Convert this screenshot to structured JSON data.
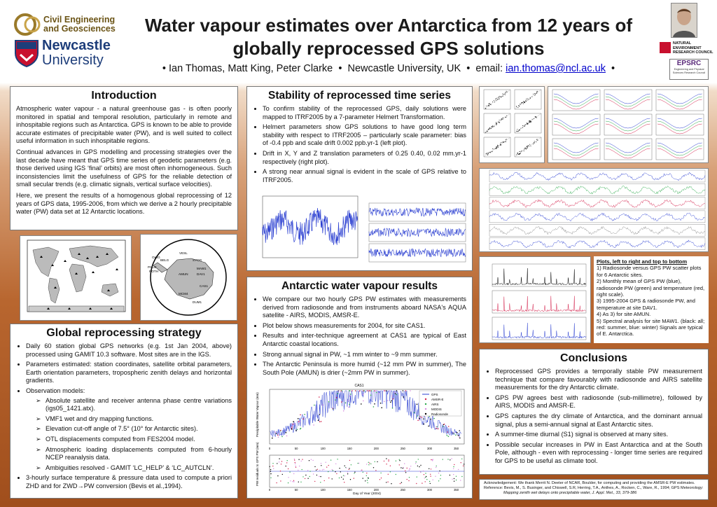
{
  "header": {
    "title_line1": "Water vapour estimates over Antarctica from 12 years of",
    "title_line2": "globally reprocessed GPS solutions",
    "authors": "Ian Thomas, Matt King, Peter Clarke",
    "affiliation": "Newcastle University, UK",
    "email_label": "email:",
    "email": "ian.thomas@ncl.ac.uk",
    "logo_ceg_line1": "Civil Engineering",
    "logo_ceg_line2": "and Geosciences",
    "logo_uni_line1": "Newcastle",
    "logo_uni_line2": "University",
    "logo_nerc_1": "NATURAL",
    "logo_nerc_2": "ENVIRONMENT",
    "logo_nerc_3": "RESEARCH COUNCIL",
    "logo_epsrc": "EPSRC",
    "logo_epsrc_sub": "Engineering and Physical Sciences Research Council"
  },
  "introduction": {
    "title": "Introduction",
    "p1": "Atmospheric water vapour - a natural greenhouse gas - is often poorly monitored in spatial and temporal resolution, particularly in remote and inhospitable regions such as Antarctica. GPS is known to be able to provide accurate estimates of precipitable water (PW), and is well suited to collect useful information in such inhospitable regions.",
    "p2": "Continual advances in GPS modelling and processing strategies over the last decade have meant that GPS time series of geodetic parameters (e.g. those derived using IGS ‘final’ orbits) are most often inhomogeneous. Such inconsistencies limit the usefulness of GPS for the reliable detection of small secular trends (e.g. climatic signals, vertical surface velocities).",
    "p3": "Here, we present the results of a homogenous global reprocessing of 12 years of GPS data, 1995-2006, from which we derive a 2 hourly precipitable water (PW) data set at 12 Antarctic locations."
  },
  "global_strategy": {
    "title": "Global reprocessing strategy",
    "b1": "Daily 60 station global GPS networks (e.g. 1st Jan 2004, above) processed using GAMIT 10.3 software. Most sites are in the IGS.",
    "b2": "Parameters estimated: station coordinates, satellite orbital parameters, Earth orientation parameters, tropospheric zenith delays and horizontal gradients.",
    "b3": "Observation models:",
    "s1": "Absolute satellite and receiver antenna phase centre variations (igs05_1421.atx).",
    "s2": "VMF1 wet and dry mapping functions.",
    "s3": "Elevation cut-off angle of 7.5° (10° for Antarctic sites).",
    "s4": "OTL displacements computed from FES2004 model.",
    "s5": "Atmospheric loading displacements computed from 6-hourly NCEP reanalysis data.",
    "s6": "Ambiguities resolved - GAMIT ‘LC_HELP’ & ‘LC_AUTCLN’.",
    "b4": "3-hourly surface temperature & pressure data used to compute a priori ZHD and for ZWD→PW conversion (Bevis et al.,1994)."
  },
  "stability": {
    "title": "Stability of reprocessed time series",
    "b1": "To confirm stability of the reprocessed GPS, daily solutions were mapped to ITRF2005 by a 7-parameter Helmert Transformation.",
    "b2": "Helmert parameters show GPS solutions to have good long term stability with respect to ITRF2005 – particularly scale parameter: bias of -0.4 ppb and scale drift 0.002 ppb.yr-1 (left plot).",
    "b3": "Drift in X, Y and Z translation parameters of 0.25 0.40, 0.02 mm.yr-1 respectively (right plot).",
    "b4": "A strong near annual signal is evident in the scale of GPS relative to ITRF2005."
  },
  "antarctic": {
    "title": "Antarctic water vapour results",
    "b1": "We compare our two hourly GPS PW estimates with measurements derived from radiosonde and from instruments aboard NASA's AQUA satellite - AIRS, MODIS, AMSR-E.",
    "b2": "Plot below shows measurements for 2004, for site CAS1.",
    "b3": "Results and inter-technique agreement at CAS1 are typical of East Antarctic coastal locations.",
    "b4": "Strong annual signal in PW, ~1 mm winter to ~9 mm summer.",
    "b5": "The Antarctic Peninsula is more humid (~12 mm PW in summer), The South Pole (AMUN) is drier (~2mm PW in summer).",
    "plot_title": "CAS1",
    "plot_ylabel1": "Precipitable Water Vapour (mm)",
    "plot_ylabel2": "PW residuals to GPS PW (mm)",
    "plot_xlabel": "Day of Year (2004)",
    "legend": [
      "GPS",
      "AMSR-E",
      "AIRS",
      "MODIS",
      "Radiosonde"
    ],
    "xticks": [
      "0",
      "50",
      "100",
      "150",
      "200",
      "250",
      "300",
      "350"
    ]
  },
  "antarctic_map": {
    "sites": [
      "VESL",
      "SYOG",
      "MAW1",
      "DAV1",
      "CAS1",
      "MCM4",
      "DUM1",
      "AMUN",
      "BELG",
      "PALM",
      "ROTH",
      "OHIG"
    ]
  },
  "plots_caption": {
    "heading": "Plots, left to right and top to bottom",
    "l1": "1) Radiosonde versus GPS PW scatter plots for 6 Antarctic sites.",
    "l2": "2) Monthly mean of GPS PW (blue), radiosonde PW (green) and temperature (red, right scale).",
    "l3": "3) 1995-2004 GPS & radiosonde PW, and temperature at site DAV1.",
    "l4": "4) As 3) for site AMUN.",
    "l5": "5) Spectral analysis for site MAW1. (black: all; red: summer, blue: winter) Signals are typical of E. Antarctica."
  },
  "conclusions": {
    "title": "Conclusions",
    "b1": "Reprocessed GPS provides a temporally stable PW measurement technique that compare favourably with radiosonde and AIRS satellite measurements for the dry Antarctic climate.",
    "b2": "GPS PW agrees best with radiosonde (sub-millimetre), followed by AIRS, MODIS and AMSR-E.",
    "b3": "GPS captures the dry climate of Antarctica, and the dominant annual signal, plus a semi-annual signal at East Antarctic sites.",
    "b4": "A summer-time diurnal (S1) signal is observed at many sites.",
    "b5": "Possible secular increases in PW in East Antarctica and at the South Pole, although - even with reprocessing - longer time series are required for GPS to be useful as climate tool."
  },
  "footer": {
    "ack": "Acknowledgement:    We thank Merrit N. Deeter of NCAR, Boulder, for computing and providing the AMSR-E PW estimates.",
    "ref1": "Reference:  Bevis, M., S. Businger, and Chiswell, S.R, Herring, T.A., Anthes, A., Rocken, C., Ware, R., 1994; GPS Meteorology:",
    "ref2": "Mapping zenith wet delays onto precipitable water, J. Appl. Met., 33, 379-386"
  },
  "colors": {
    "title": "#1a1a1a",
    "link": "#0000cc",
    "gps_blue": "#2b3fd1",
    "uni_blue": "#1d3d7a",
    "uni_red": "#c8102e",
    "background_top": "#ffffff",
    "background_bottom": "#a04e1c"
  },
  "icons": {
    "ceg_logo": "ceg-logo-icon",
    "crest": "newcastle-crest-icon",
    "photo": "author-photo-icon",
    "nerc": "nerc-logo-icon",
    "epsrc": "epsrc-logo-icon"
  }
}
